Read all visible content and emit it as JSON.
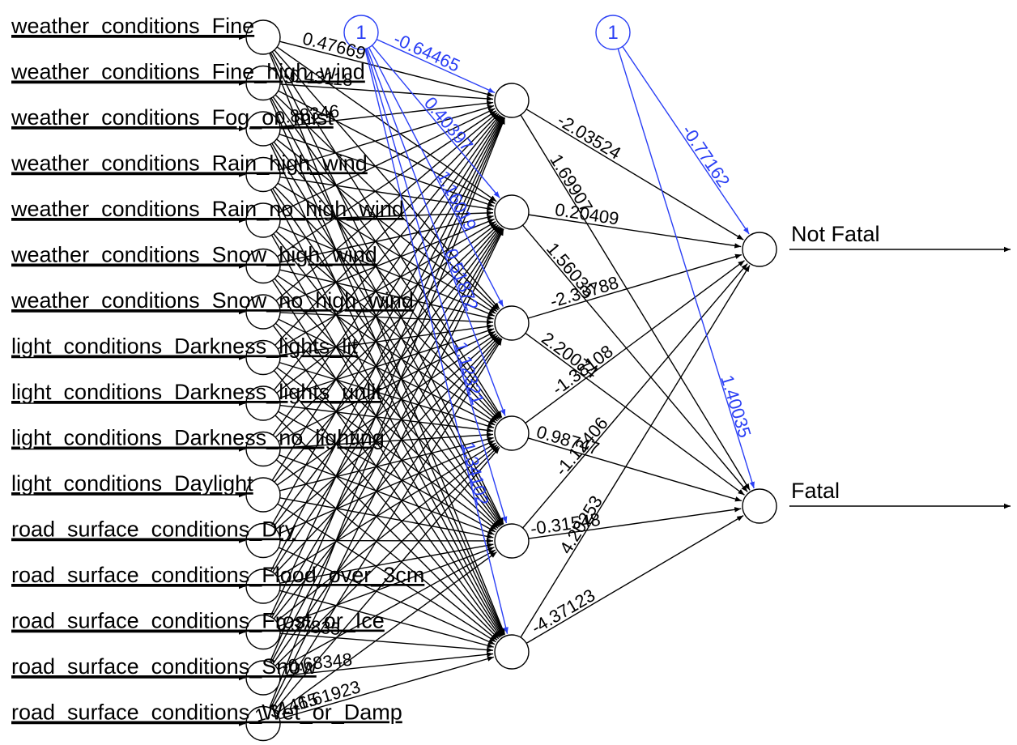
{
  "input_labels": [
    "weather_conditions_Fine",
    "weather_conditions_Fine_high_wind",
    "weather_conditions_Fog_or_mist",
    "weather_conditions_Rain_high_wind",
    "weather_conditions_Rain_no_high_wind",
    "weather_conditions_Snow_high_wind",
    "weather_conditions_Snow_no_high_wind",
    "light_conditions_Darkness_lights_lit",
    "light_conditions_Darkness_lights_unlit",
    "light_conditions_Darkness_no_lighting",
    "light_conditions_Daylight",
    "road_surface_conditions_Dry",
    "road_surface_conditions_Flood_over_3cm",
    "road_surface_conditions_Frost_or_Ice",
    "road_surface_conditions_Snow",
    "road_surface_conditions_Wet_or_Damp"
  ],
  "output_labels": [
    "Not Fatal",
    "Fatal"
  ],
  "bias_labels": [
    "1",
    "1"
  ],
  "colors": {
    "black": "#000000",
    "bias": "#2a3ff5"
  },
  "hidden_bias_weights": [
    "-0.64465",
    "0.40397",
    "1.16019",
    "0.51872",
    "1.12321",
    "1.34102"
  ],
  "output_bias_weights": [
    "-0.77162",
    "1.40035"
  ],
  "hidden_output_weights": [
    [
      "-2.03524",
      "1.69907"
    ],
    [
      "0.20409",
      "1.56035"
    ],
    [
      "-2.33788",
      "2.20074"
    ],
    [
      "-1.38108",
      "0.98747"
    ],
    [
      "-1.12406",
      "-0.31548"
    ],
    [
      "4.20253",
      "-4.37123"
    ]
  ],
  "input_hidden_weights_visible": [
    "0.47669",
    "-0.43118",
    "0.88346",
    "0.37835",
    "-0.68348",
    "-6.61923",
    "1.31415"
  ]
}
